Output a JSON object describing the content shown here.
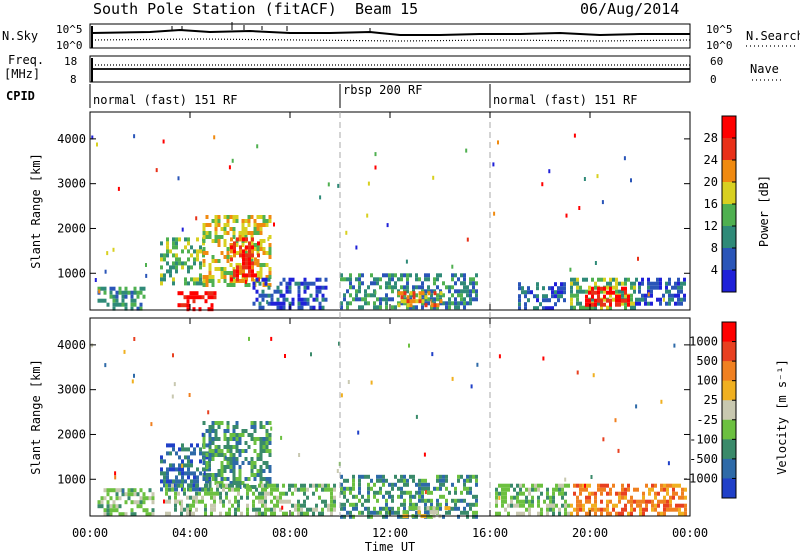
{
  "header": {
    "station": "South Pole Station (fitACF)",
    "beam": "Beam 15",
    "date": "06/Aug/2014"
  },
  "noise_panel": {
    "left_label": "N.Sky",
    "right_label": "N.Search",
    "left_ticks": [
      "10^5",
      "10^0"
    ],
    "right_ticks": [
      "10^5",
      "10^0"
    ]
  },
  "freq_panel": {
    "left_label_line1": "Freq.",
    "left_label_line2": "[MHz]",
    "right_label": "Nave",
    "left_ticks": [
      "18",
      "8"
    ],
    "right_ticks": [
      "60",
      "0"
    ]
  },
  "cpid": {
    "label": "CPID",
    "segments": [
      {
        "start_h": 0,
        "end_h": 10,
        "text": "normal (fast) 151 RF"
      },
      {
        "start_h": 10,
        "end_h": 16,
        "text": "rbsp 200 RF"
      },
      {
        "start_h": 16,
        "end_h": 24,
        "text": "normal (fast) 151 RF"
      }
    ]
  },
  "power_panel": {
    "ylabel": "Slant Range [km]",
    "yticks": [
      "1000",
      "2000",
      "3000",
      "4000"
    ],
    "colorbar_label": "Power [dB]",
    "colorbar_ticks": [
      "4",
      "8",
      "12",
      "16",
      "20",
      "24",
      "28"
    ],
    "colors": [
      "#1f20d8",
      "#2a55b8",
      "#2f8a78",
      "#4fb050",
      "#d8d020",
      "#f08a10",
      "#e83018",
      "#ff0000"
    ]
  },
  "velocity_panel": {
    "ylabel": "Slant Range [km]",
    "yticks": [
      "1000",
      "2000",
      "3000",
      "4000"
    ],
    "colorbar_label": "Velocity  [m s⁻¹]",
    "colorbar_ticks": [
      "1000",
      "500",
      "100",
      "25",
      "-25",
      "-100",
      "-500",
      "-1000"
    ],
    "colors": [
      "#2040c8",
      "#2e6aa8",
      "#3a8a6a",
      "#6cc040",
      "#c8c8b0",
      "#f0b020",
      "#f08020",
      "#e84020",
      "#ff0000"
    ]
  },
  "x_axis": {
    "label": "Time UT",
    "ticks": [
      "00:00",
      "04:00",
      "08:00",
      "12:00",
      "16:00",
      "20:00",
      "00:00"
    ]
  },
  "chart_data": {
    "type": "heatmap",
    "x": {
      "unit": "hours UT",
      "range": [
        0,
        24
      ]
    },
    "y": {
      "unit": "km",
      "range": [
        180,
        4600
      ]
    },
    "power_regions": [
      {
        "t0": 0.3,
        "t1": 2.2,
        "r0": 200,
        "r1": 700,
        "level": 2
      },
      {
        "t0": 2.8,
        "t1": 4.5,
        "r0": 800,
        "r1": 1800,
        "level": 3
      },
      {
        "t0": 4.5,
        "t1": 7.2,
        "r0": 700,
        "r1": 2300,
        "level": 4
      },
      {
        "t0": 5.6,
        "t1": 6.8,
        "r0": 900,
        "r1": 1800,
        "level": 6
      },
      {
        "t0": 3.5,
        "t1": 5.0,
        "r0": 200,
        "r1": 600,
        "level": 7
      },
      {
        "t0": 6.5,
        "t1": 9.5,
        "r0": 200,
        "r1": 900,
        "level": 1
      },
      {
        "t0": 10.0,
        "t1": 15.5,
        "r0": 200,
        "r1": 1000,
        "level": 2
      },
      {
        "t0": 12.3,
        "t1": 14.0,
        "r0": 300,
        "r1": 600,
        "level": 5
      },
      {
        "t0": 17.0,
        "t1": 19.0,
        "r0": 200,
        "r1": 800,
        "level": 1
      },
      {
        "t0": 19.2,
        "t1": 21.8,
        "r0": 200,
        "r1": 900,
        "level": 3
      },
      {
        "t0": 19.8,
        "t1": 21.5,
        "r0": 300,
        "r1": 700,
        "level": 7
      },
      {
        "t0": 21.8,
        "t1": 23.8,
        "r0": 300,
        "r1": 900,
        "level": 1
      }
    ],
    "velocity_regions": [
      {
        "t0": 0.3,
        "t1": 2.5,
        "r0": 200,
        "r1": 800,
        "level": 3
      },
      {
        "t0": 2.8,
        "t1": 4.8,
        "r0": 800,
        "r1": 1800,
        "level": 1
      },
      {
        "t0": 4.5,
        "t1": 7.2,
        "r0": 800,
        "r1": 2300,
        "level": 2
      },
      {
        "t0": 3.0,
        "t1": 9.8,
        "r0": 200,
        "r1": 900,
        "level": 3
      },
      {
        "t0": 10.0,
        "t1": 15.5,
        "r0": 200,
        "r1": 1100,
        "level": 2
      },
      {
        "t0": 12.5,
        "t1": 14.5,
        "r0": 200,
        "r1": 400,
        "level": 4
      },
      {
        "t0": 16.2,
        "t1": 19.2,
        "r0": 200,
        "r1": 900,
        "level": 3
      },
      {
        "t0": 19.2,
        "t1": 23.8,
        "r0": 200,
        "r1": 900,
        "level": 6
      }
    ]
  }
}
